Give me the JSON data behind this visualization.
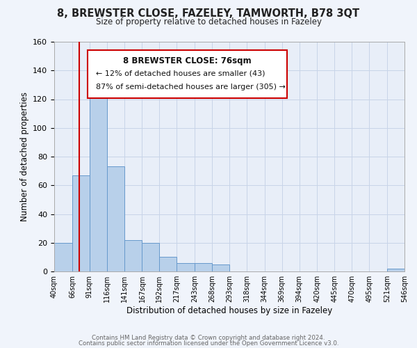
{
  "title": "8, BREWSTER CLOSE, FAZELEY, TAMWORTH, B78 3QT",
  "subtitle": "Size of property relative to detached houses in Fazeley",
  "xlabel": "Distribution of detached houses by size in Fazeley",
  "ylabel": "Number of detached properties",
  "bar_color": "#b8d0ea",
  "bar_edge_color": "#6699cc",
  "background_color": "#e8eef8",
  "fig_background_color": "#f0f4fb",
  "grid_color": "#c8d4e8",
  "bin_edges": [
    40,
    66,
    91,
    116,
    141,
    167,
    192,
    217,
    243,
    268,
    293,
    318,
    344,
    369,
    394,
    420,
    445,
    470,
    495,
    521,
    546
  ],
  "bin_labels": [
    "40sqm",
    "66sqm",
    "91sqm",
    "116sqm",
    "141sqm",
    "167sqm",
    "192sqm",
    "217sqm",
    "243sqm",
    "268sqm",
    "293sqm",
    "318sqm",
    "344sqm",
    "369sqm",
    "394sqm",
    "420sqm",
    "445sqm",
    "470sqm",
    "495sqm",
    "521sqm",
    "546sqm"
  ],
  "bar_heights": [
    20,
    67,
    125,
    73,
    22,
    20,
    10,
    6,
    6,
    5,
    0,
    0,
    0,
    0,
    0,
    0,
    0,
    0,
    0,
    2
  ],
  "ylim": [
    0,
    160
  ],
  "yticks": [
    0,
    20,
    40,
    60,
    80,
    100,
    120,
    140,
    160
  ],
  "red_line_x": 76,
  "annotation_title": "8 BREWSTER CLOSE: 76sqm",
  "annotation_line1": "← 12% of detached houses are smaller (43)",
  "annotation_line2": "87% of semi-detached houses are larger (305) →",
  "annotation_box_color": "#ffffff",
  "annotation_box_edge": "#cc0000",
  "red_line_color": "#cc0000",
  "footnote1": "Contains HM Land Registry data © Crown copyright and database right 2024.",
  "footnote2": "Contains public sector information licensed under the Open Government Licence v3.0."
}
